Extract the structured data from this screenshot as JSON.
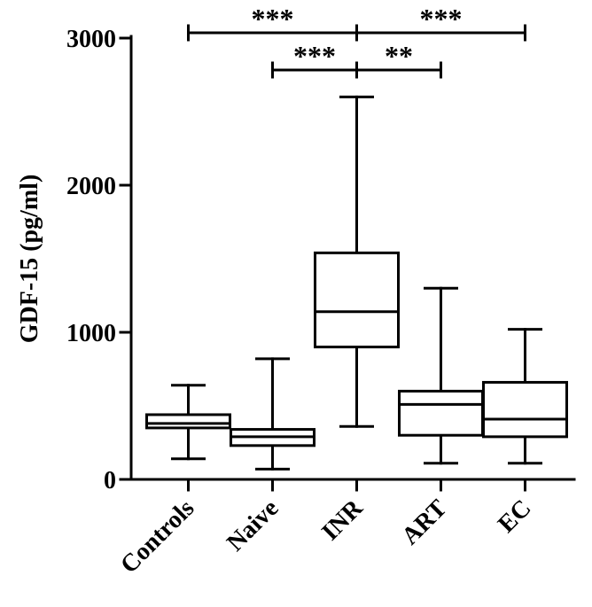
{
  "chart_data": {
    "type": "boxplot",
    "ylabel": "GDF-15 (pg/ml)",
    "xlabel": "",
    "ylim": [
      0,
      3000
    ],
    "yticks": [
      0,
      1000,
      2000,
      3000
    ],
    "categories": [
      "Controls",
      "Naive",
      "INR",
      "ART",
      "EC"
    ],
    "boxes": [
      {
        "category": "Controls",
        "min": 140,
        "q1": 350,
        "median": 380,
        "q3": 440,
        "max": 640
      },
      {
        "category": "Naive",
        "min": 70,
        "q1": 230,
        "median": 290,
        "q3": 340,
        "max": 820
      },
      {
        "category": "INR",
        "min": 360,
        "q1": 900,
        "median": 1140,
        "q3": 1540,
        "max": 2600
      },
      {
        "category": "ART",
        "min": 110,
        "q1": 300,
        "median": 510,
        "q3": 600,
        "max": 1300
      },
      {
        "category": "EC",
        "min": 110,
        "q1": 290,
        "median": 410,
        "q3": 660,
        "max": 1020
      }
    ],
    "significance": [
      {
        "from": "Controls",
        "to": "INR",
        "label": "***"
      },
      {
        "from": "INR",
        "to": "EC",
        "label": "***"
      },
      {
        "from": "Naive",
        "to": "INR",
        "label": "***"
      },
      {
        "from": "INR",
        "to": "ART",
        "label": "**"
      }
    ],
    "grid": false,
    "legend": "none",
    "colors": {
      "stroke": "#000000",
      "fill": "#ffffff"
    }
  }
}
